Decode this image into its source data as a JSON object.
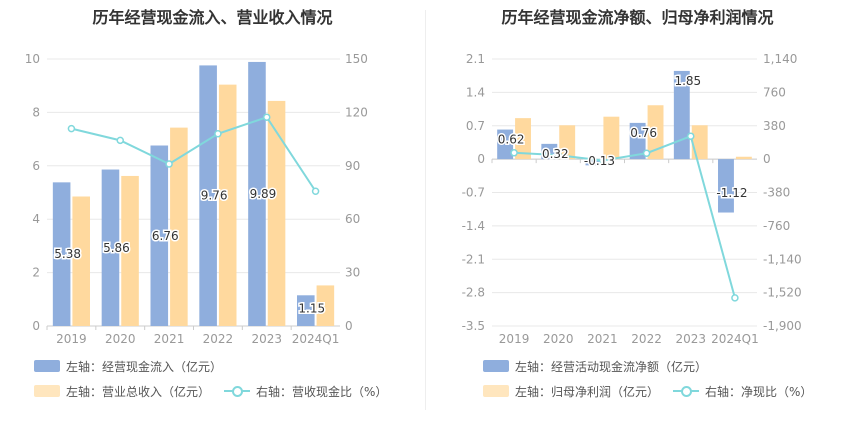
{
  "colors": {
    "bar_primary": "#8FAEDD",
    "bar_secondary": "#FFD99E",
    "line": "#80D8DC",
    "axis_text": "#999999",
    "grid": "#E8E8E8"
  },
  "chart_data": [
    {
      "type": "bar",
      "title": "历年经营现金流入、营业收入情况",
      "categories": [
        "2019",
        "2020",
        "2021",
        "2022",
        "2023",
        "2024Q1"
      ],
      "left_axis": {
        "min": 0,
        "max": 10,
        "ticks": [
          "0",
          "2",
          "4",
          "6",
          "8",
          "10"
        ]
      },
      "right_axis": {
        "min": 0,
        "max": 150,
        "ticks": [
          "0",
          "30",
          "60",
          "90",
          "120",
          "150"
        ]
      },
      "series": [
        {
          "name": "左轴：经营现金流入（亿元）",
          "axis": "left",
          "kind": "bar",
          "values": [
            5.38,
            5.86,
            6.76,
            9.76,
            9.89,
            1.15
          ],
          "labels": [
            "5.38",
            "5.86",
            "6.76",
            "9.76",
            "9.89",
            "1.15"
          ]
        },
        {
          "name": "左轴：营业总收入（亿元）",
          "axis": "left",
          "kind": "bar",
          "values": [
            4.85,
            5.62,
            7.43,
            9.04,
            8.43,
            1.52
          ]
        },
        {
          "name": "右轴：营收现金比（%）",
          "axis": "right",
          "kind": "line",
          "values": [
            110.9,
            104.3,
            91.0,
            108.0,
            117.3,
            75.7
          ]
        }
      ],
      "legend": [
        [
          "左轴：经营现金流入（亿元）"
        ],
        [
          "左轴：营业总收入（亿元）",
          "右轴：营收现金比（%）"
        ]
      ]
    },
    {
      "type": "bar",
      "title": "历年经营现金流净额、归母净利润情况",
      "categories": [
        "2019",
        "2020",
        "2021",
        "2022",
        "2023",
        "2024Q1"
      ],
      "left_axis": {
        "min": -3.5,
        "max": 2.1,
        "ticks": [
          "-3.5",
          "-2.8",
          "-2.1",
          "-1.4",
          "-0.7",
          "0",
          "0.7",
          "1.4",
          "2.1"
        ]
      },
      "right_axis": {
        "min": -1900,
        "max": 1140,
        "ticks": [
          "-1,900",
          "-1,520",
          "-1,140",
          "-760",
          "-380",
          "0",
          "380",
          "760",
          "1,140"
        ]
      },
      "series": [
        {
          "name": "左轴：经营活动现金流净额（亿元）",
          "axis": "left",
          "kind": "bar",
          "values": [
            0.62,
            0.32,
            -0.13,
            0.76,
            1.85,
            -1.12
          ],
          "labels": [
            "0.62",
            "0.32",
            "-0.13",
            "0.76",
            "1.85",
            "-1.12"
          ]
        },
        {
          "name": "左轴：归母净利润（亿元）",
          "axis": "left",
          "kind": "bar",
          "values": [
            0.86,
            0.71,
            0.89,
            1.13,
            0.71,
            0.05
          ]
        },
        {
          "name": "右轴：净现比（%）",
          "axis": "right",
          "kind": "line",
          "values": [
            72,
            45,
            -15,
            67,
            261,
            -1580
          ]
        }
      ],
      "legend": [
        [
          "左轴：经营活动现金流净额（亿元）"
        ],
        [
          "左轴：归母净利润（亿元）",
          "右轴：净现比（%）"
        ]
      ]
    }
  ]
}
